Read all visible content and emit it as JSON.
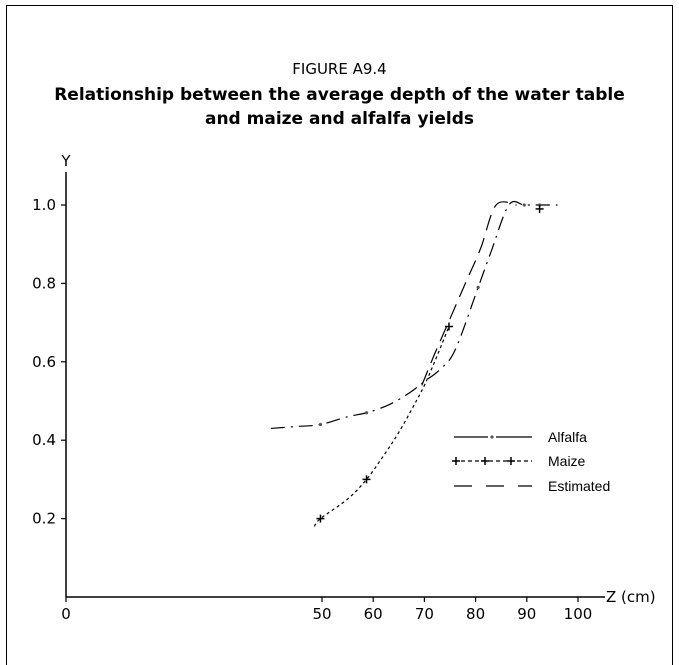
{
  "figure_label": "FIGURE A9.4",
  "title_line1": "Relationship between the average depth of the water table",
  "title_line2": "and maize and alfalfa yields",
  "chart_data": {
    "type": "line",
    "ylabel": "Y",
    "xlabel": "Z (cm)",
    "xlim": [
      0,
      100
    ],
    "ylim": [
      0,
      1.0
    ],
    "x_ticks": [
      "0",
      "50",
      "60",
      "70",
      "80",
      "90",
      "100"
    ],
    "y_ticks": [
      "0.2",
      "0.4",
      "0.6",
      "0.8",
      "1.0"
    ],
    "legend_position": "right",
    "series": [
      {
        "name": "Alfalfa",
        "style": "dash-dot",
        "points": [
          [
            40,
            0.43
          ],
          [
            45,
            0.435
          ],
          [
            49.7,
            0.44
          ],
          [
            55,
            0.46
          ],
          [
            58.7,
            0.47
          ],
          [
            63,
            0.49
          ],
          [
            67,
            0.52
          ],
          [
            70,
            0.55
          ],
          [
            73,
            0.58
          ],
          [
            76,
            0.63
          ],
          [
            80.5,
            0.79
          ],
          [
            83,
            0.88
          ],
          [
            86.5,
            1.0
          ],
          [
            89.5,
            1.0
          ],
          [
            92.5,
            1.0
          ],
          [
            96,
            1.0
          ]
        ],
        "markers": [
          [
            49.7,
            0.44
          ],
          [
            58.7,
            0.47
          ],
          [
            80.5,
            0.79
          ],
          [
            89.5,
            1.0
          ],
          [
            92.5,
            1.0
          ]
        ]
      },
      {
        "name": "Maize",
        "style": "dotted",
        "points": [
          [
            48.5,
            0.18
          ],
          [
            49.7,
            0.2
          ],
          [
            55,
            0.25
          ],
          [
            58.7,
            0.3
          ],
          [
            62,
            0.36
          ],
          [
            65,
            0.42
          ],
          [
            68,
            0.49
          ],
          [
            70,
            0.54
          ],
          [
            72,
            0.6
          ],
          [
            74.8,
            0.69
          ]
        ],
        "markers": [
          [
            49.7,
            0.2
          ],
          [
            58.7,
            0.3
          ],
          [
            74.8,
            0.69
          ],
          [
            92.5,
            0.99
          ]
        ]
      },
      {
        "name": "Estimated",
        "style": "dashed",
        "points": [
          [
            69.5,
            0.54
          ],
          [
            72,
            0.62
          ],
          [
            75,
            0.71
          ],
          [
            78,
            0.8
          ],
          [
            81,
            0.89
          ],
          [
            84,
            1.0
          ],
          [
            88,
            1.0
          ]
        ],
        "markers": []
      }
    ]
  }
}
